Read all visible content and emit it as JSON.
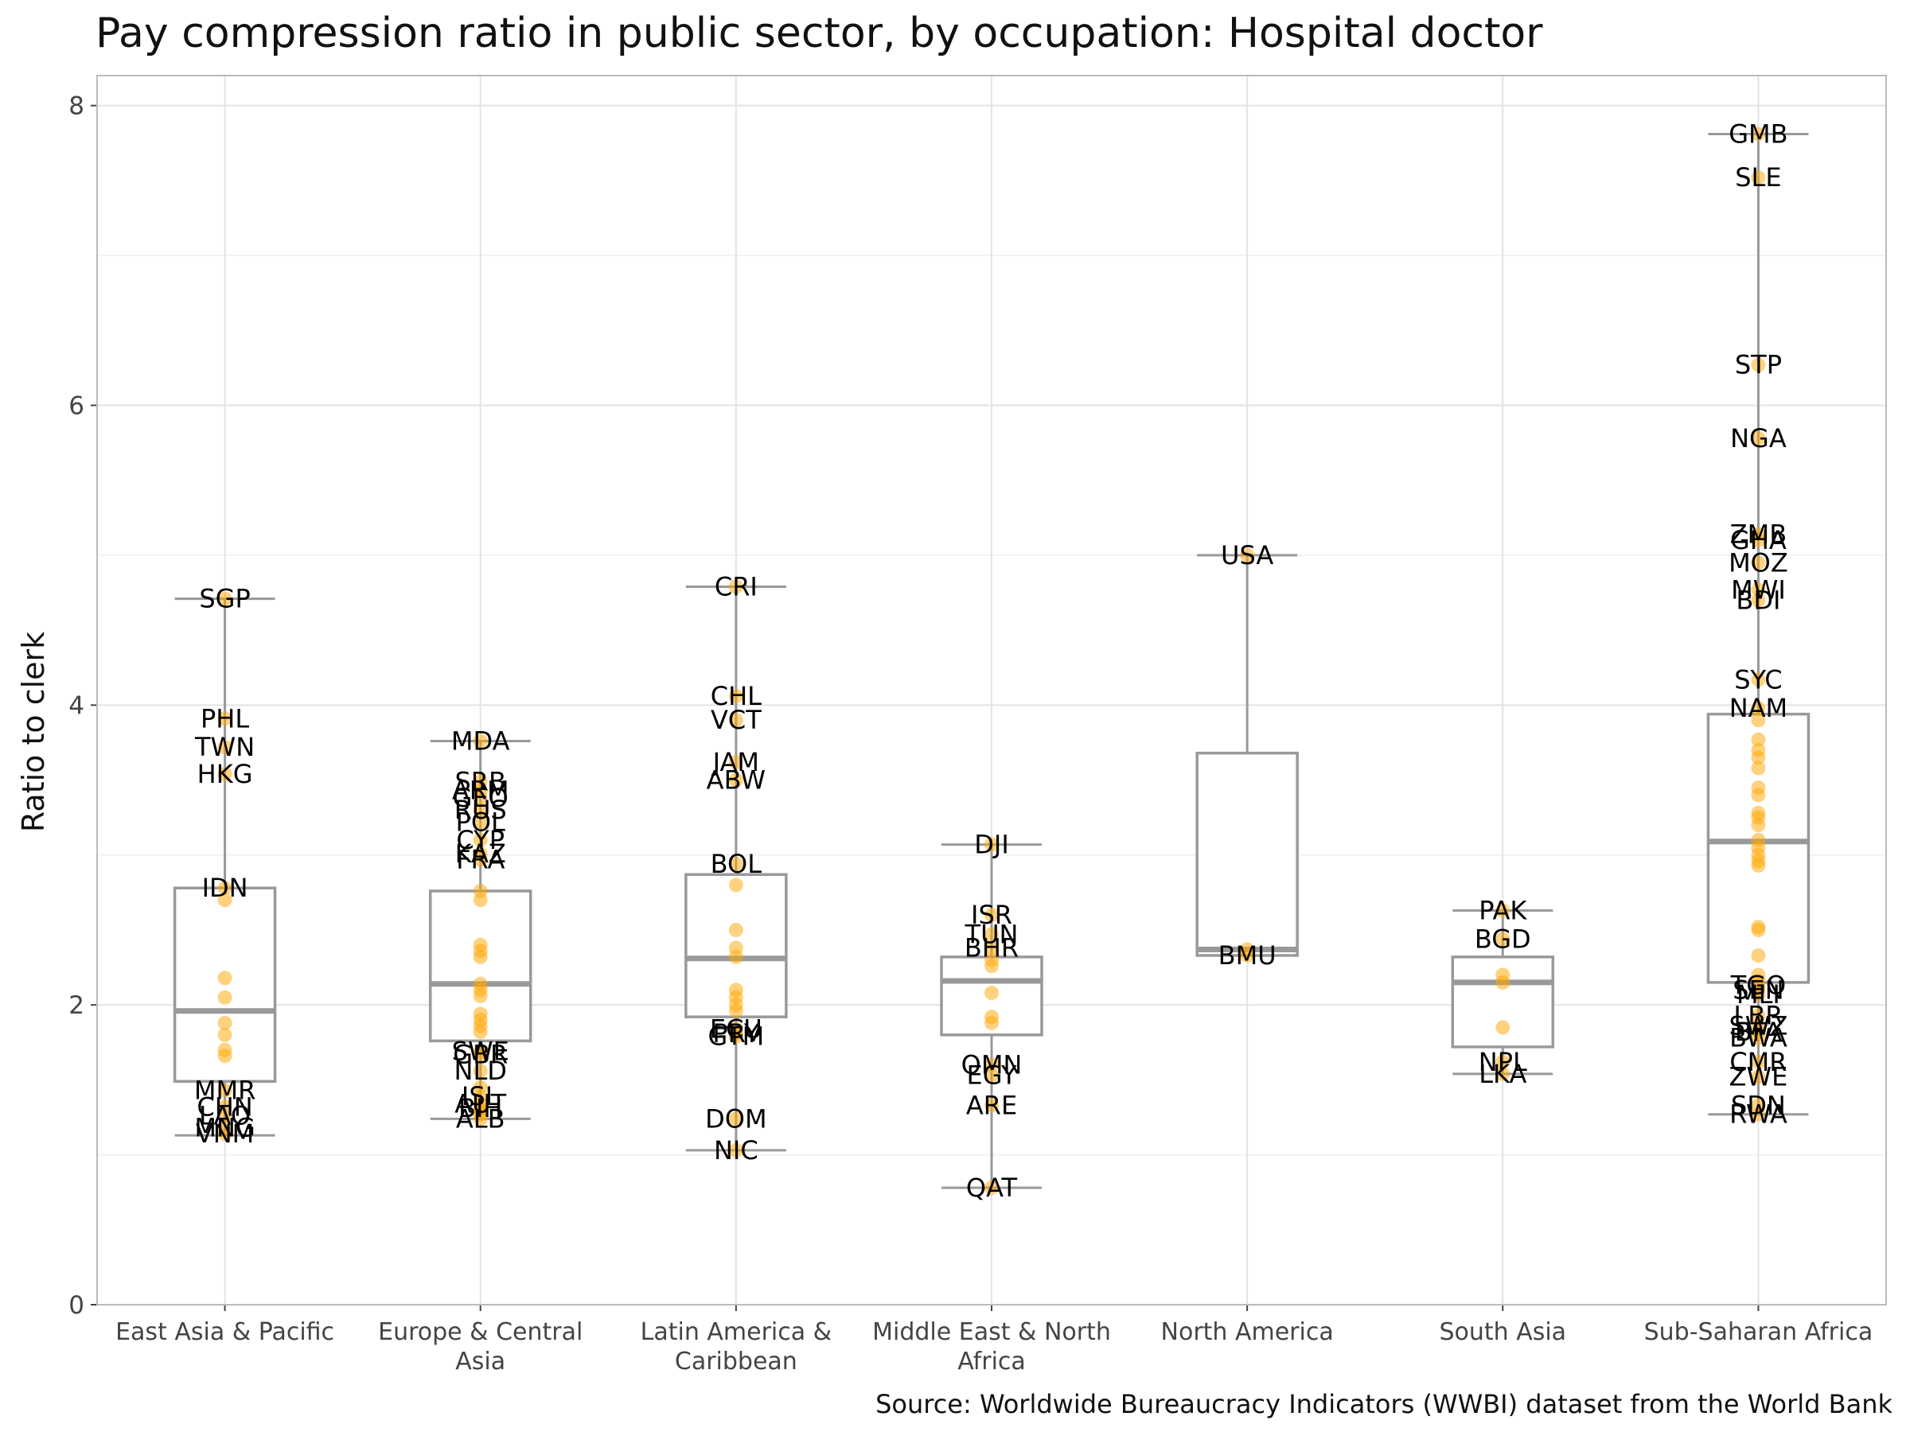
{
  "chart_data": {
    "type": "boxplot",
    "title": "Pay compression ratio in public sector, by occupation: Hospital doctor",
    "caption": "Source: Worldwide Bureaucracy Indicators (WWBI) dataset from the World Bank",
    "xlabel": "",
    "ylabel": "Ratio to clerk",
    "ylim": [
      0,
      8.2
    ],
    "yticks": [
      0,
      2,
      4,
      6,
      8
    ],
    "grid": true,
    "colors": {
      "box": "#999999",
      "point": "#FFA500",
      "grid": "#e3e3e3",
      "panel_border": "#bbbbbb",
      "text": "#111111"
    },
    "categories": [
      {
        "label": "East Asia & Pacific",
        "lines": [
          "East Asia & Pacific"
        ],
        "whisker_low": 1.13,
        "q1": 1.49,
        "median": 1.96,
        "q3": 2.78,
        "whisker_high": 4.71,
        "labeled": [
          [
            "SGP",
            4.71
          ],
          [
            "PHL",
            3.91
          ],
          [
            "TWN",
            3.72
          ],
          [
            "HKG",
            3.54
          ],
          [
            "IDN",
            2.78
          ],
          [
            "MMR",
            1.43
          ],
          [
            "CHN",
            1.32
          ],
          [
            "LAO",
            1.26
          ],
          [
            "MNG",
            1.18
          ],
          [
            "VNM",
            1.14
          ]
        ],
        "points": [
          2.7,
          2.18,
          2.05,
          1.88,
          1.8,
          1.7,
          1.66
        ]
      },
      {
        "label": "Europe & Central Asia",
        "lines": [
          "Europe & Central",
          "Asia"
        ],
        "whisker_low": 1.24,
        "q1": 1.76,
        "median": 2.14,
        "q3": 2.76,
        "whisker_high": 3.76,
        "labeled": [
          [
            "MDA",
            3.76
          ],
          [
            "SRB",
            3.49
          ],
          [
            "ARM",
            3.43
          ],
          [
            "GEO",
            3.38
          ],
          [
            "RUS",
            3.3
          ],
          [
            "POL",
            3.22
          ],
          [
            "CYP",
            3.1
          ],
          [
            "KAZ",
            3.01
          ],
          [
            "FRA",
            2.97
          ],
          [
            "SWE",
            1.69
          ],
          [
            "GBR",
            1.67
          ],
          [
            "NLD",
            1.56
          ],
          [
            "ISL",
            1.39
          ],
          [
            "AUT",
            1.34
          ],
          [
            "BIH",
            1.31
          ],
          [
            "ALB",
            1.24
          ]
        ],
        "points": [
          2.76,
          2.7,
          2.4,
          2.36,
          2.32,
          2.14,
          2.1,
          2.06,
          1.94,
          1.9,
          1.86,
          1.82,
          1.45,
          1.3,
          1.27
        ]
      },
      {
        "label": "Latin America & Caribbean",
        "lines": [
          "Latin America &",
          "Caribbean"
        ],
        "whisker_low": 1.03,
        "q1": 1.92,
        "median": 2.31,
        "q3": 2.87,
        "whisker_high": 4.79,
        "labeled": [
          [
            "CRI",
            4.79
          ],
          [
            "CHL",
            4.06
          ],
          [
            "VCT",
            3.9
          ],
          [
            "JAM",
            3.62
          ],
          [
            "ABW",
            3.5
          ],
          [
            "BOL",
            2.94
          ],
          [
            "ECU",
            1.84
          ],
          [
            "PRY",
            1.81
          ],
          [
            "GTM",
            1.79
          ],
          [
            "DOM",
            1.24
          ],
          [
            "NIC",
            1.03
          ]
        ],
        "points": [
          2.8,
          2.5,
          2.38,
          2.32,
          2.1,
          2.05,
          2.0,
          1.96
        ]
      },
      {
        "label": "Middle East & North Africa",
        "lines": [
          "Middle East & North",
          "Africa"
        ],
        "whisker_low": 0.78,
        "q1": 1.8,
        "median": 2.16,
        "q3": 2.32,
        "whisker_high": 3.07,
        "labeled": [
          [
            "DJI",
            3.07
          ],
          [
            "ISR",
            2.6
          ],
          [
            "TUN",
            2.47
          ],
          [
            "BHR",
            2.38
          ],
          [
            "OMN",
            1.6
          ],
          [
            "EGY",
            1.53
          ],
          [
            "ARE",
            1.33
          ],
          [
            "QAT",
            0.78
          ]
        ],
        "points": [
          2.3,
          2.26,
          2.08,
          1.92,
          1.88
        ]
      },
      {
        "label": "North America",
        "lines": [
          "North America"
        ],
        "whisker_low": 2.33,
        "q1": 2.33,
        "median": 2.37,
        "q3": 3.68,
        "whisker_high": 5.0,
        "labeled": [
          [
            "USA",
            5.0
          ],
          [
            "BMU",
            2.33
          ]
        ],
        "points": [
          2.37
        ]
      },
      {
        "label": "South Asia",
        "lines": [
          "South Asia"
        ],
        "whisker_low": 1.54,
        "q1": 1.72,
        "median": 2.15,
        "q3": 2.32,
        "whisker_high": 2.63,
        "labeled": [
          [
            "PAK",
            2.63
          ],
          [
            "BGD",
            2.44
          ],
          [
            "NPL",
            1.62
          ],
          [
            "LKA",
            1.54
          ]
        ],
        "points": [
          2.2,
          2.15,
          1.85
        ]
      },
      {
        "label": "Sub-Saharan Africa",
        "lines": [
          "Sub-Saharan Africa"
        ],
        "whisker_low": 1.27,
        "q1": 2.15,
        "median": 3.09,
        "q3": 3.94,
        "whisker_high": 7.81,
        "labeled": [
          [
            "GMB",
            7.81
          ],
          [
            "SLE",
            7.52
          ],
          [
            "STP",
            6.27
          ],
          [
            "NGA",
            5.78
          ],
          [
            "ZMB",
            5.14
          ],
          [
            "GHA",
            5.1
          ],
          [
            "MOZ",
            4.95
          ],
          [
            "MWI",
            4.77
          ],
          [
            "BDI",
            4.7
          ],
          [
            "SYC",
            4.17
          ],
          [
            "NAM",
            3.98
          ],
          [
            "TGO",
            2.13
          ],
          [
            "SEN",
            2.1
          ],
          [
            "MLI",
            2.07
          ],
          [
            "LBR",
            1.93
          ],
          [
            "SWZ",
            1.86
          ],
          [
            "BFA",
            1.82
          ],
          [
            "BWA",
            1.78
          ],
          [
            "CMR",
            1.62
          ],
          [
            "ZWE",
            1.52
          ],
          [
            "SDN",
            1.33
          ],
          [
            "RWA",
            1.27
          ]
        ],
        "points": [
          3.9,
          3.77,
          3.7,
          3.65,
          3.58,
          3.45,
          3.4,
          3.28,
          3.25,
          3.2,
          3.1,
          3.05,
          3.0,
          2.96,
          2.93,
          2.52,
          2.5,
          2.33,
          2.2,
          2.16
        ]
      }
    ]
  }
}
